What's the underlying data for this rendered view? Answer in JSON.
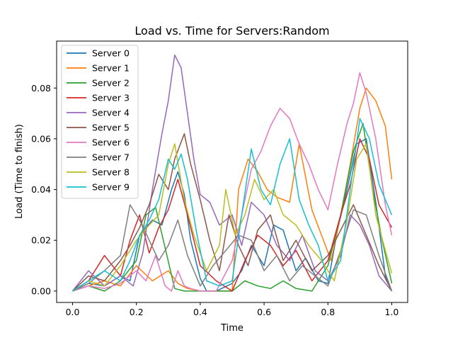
{
  "chart_data": {
    "type": "line",
    "title": "Load vs. Time for Servers:Random",
    "xlabel": "Time",
    "ylabel": "Load (Time to finish)",
    "xlim": [
      -0.05,
      1.05
    ],
    "ylim": [
      -0.0045,
      0.0985
    ],
    "x_ticks": [
      0.0,
      0.2,
      0.4,
      0.6,
      0.8,
      1.0
    ],
    "x_tick_labels": [
      "0.0",
      "0.2",
      "0.4",
      "0.6",
      "0.8",
      "1.0"
    ],
    "y_ticks": [
      0.0,
      0.02,
      0.04,
      0.06,
      0.08
    ],
    "y_tick_labels": [
      "0.00",
      "0.02",
      "0.04",
      "0.06",
      "0.08"
    ],
    "grid": false,
    "legend_position": "upper-left",
    "series": [
      {
        "name": "Server 0",
        "color": "#1f77b4",
        "x": [
          0.0,
          0.05,
          0.1,
          0.15,
          0.18,
          0.21,
          0.25,
          0.28,
          0.31,
          0.33,
          0.35,
          0.37,
          0.4,
          0.42,
          0.45,
          0.5,
          0.53,
          0.56,
          0.6,
          0.63,
          0.66,
          0.7,
          0.73,
          0.77,
          0.8,
          0.83,
          0.86,
          0.89,
          0.92,
          0.95,
          0.98,
          1.0
        ],
        "y": [
          0.0,
          0.003,
          0.002,
          0.006,
          0.004,
          0.022,
          0.028,
          0.026,
          0.04,
          0.047,
          0.038,
          0.02,
          0.005,
          0.0,
          0.0,
          0.003,
          0.008,
          0.018,
          0.01,
          0.026,
          0.024,
          0.008,
          0.013,
          0.004,
          0.003,
          0.024,
          0.04,
          0.058,
          0.06,
          0.035,
          0.006,
          0.0
        ]
      },
      {
        "name": "Server 1",
        "color": "#ff7f0e",
        "x": [
          0.0,
          0.05,
          0.1,
          0.15,
          0.2,
          0.25,
          0.3,
          0.33,
          0.36,
          0.4,
          0.45,
          0.5,
          0.52,
          0.55,
          0.58,
          0.61,
          0.64,
          0.68,
          0.71,
          0.75,
          0.78,
          0.81,
          0.84,
          0.87,
          0.9,
          0.92,
          0.95,
          0.98,
          1.0
        ],
        "y": [
          0.0,
          0.002,
          0.004,
          0.002,
          0.01,
          0.004,
          0.008,
          0.003,
          0.001,
          0.0,
          0.0,
          0.0,
          0.04,
          0.052,
          0.047,
          0.04,
          0.037,
          0.035,
          0.058,
          0.032,
          0.022,
          0.012,
          0.03,
          0.05,
          0.072,
          0.08,
          0.075,
          0.065,
          0.044
        ]
      },
      {
        "name": "Server 2",
        "color": "#2ca02c",
        "x": [
          0.0,
          0.05,
          0.1,
          0.15,
          0.2,
          0.23,
          0.26,
          0.29,
          0.32,
          0.35,
          0.38,
          0.42,
          0.46,
          0.5,
          0.54,
          0.58,
          0.62,
          0.66,
          0.7,
          0.75,
          0.8,
          0.84,
          0.88,
          0.91,
          0.94,
          0.97,
          1.0
        ],
        "y": [
          0.0,
          0.002,
          0.0,
          0.004,
          0.012,
          0.03,
          0.033,
          0.017,
          0.001,
          0.0,
          0.0,
          0.0,
          0.0,
          0.0,
          0.004,
          0.002,
          0.001,
          0.004,
          0.001,
          0.0,
          0.01,
          0.03,
          0.055,
          0.066,
          0.04,
          0.02,
          0.003
        ]
      },
      {
        "name": "Server 3",
        "color": "#d62728",
        "x": [
          0.0,
          0.05,
          0.1,
          0.15,
          0.18,
          0.21,
          0.24,
          0.27,
          0.3,
          0.33,
          0.36,
          0.4,
          0.45,
          0.5,
          0.54,
          0.58,
          0.62,
          0.66,
          0.7,
          0.75,
          0.8,
          0.84,
          0.87,
          0.9,
          0.93,
          0.96,
          1.0
        ],
        "y": [
          0.0,
          0.004,
          0.014,
          0.006,
          0.02,
          0.03,
          0.015,
          0.025,
          0.032,
          0.044,
          0.03,
          0.01,
          0.004,
          0.0,
          0.012,
          0.022,
          0.018,
          0.01,
          0.016,
          0.004,
          0.012,
          0.03,
          0.042,
          0.06,
          0.052,
          0.034,
          0.025
        ]
      },
      {
        "name": "Server 4",
        "color": "#9467bd",
        "x": [
          0.0,
          0.05,
          0.1,
          0.15,
          0.19,
          0.22,
          0.25,
          0.28,
          0.3,
          0.32,
          0.34,
          0.36,
          0.38,
          0.4,
          0.43,
          0.46,
          0.5,
          0.53,
          0.56,
          0.6,
          0.64,
          0.68,
          0.72,
          0.76,
          0.8,
          0.84,
          0.87,
          0.9,
          0.93,
          0.96,
          1.0
        ],
        "y": [
          0.0,
          0.008,
          0.002,
          0.006,
          0.002,
          0.015,
          0.04,
          0.062,
          0.075,
          0.093,
          0.088,
          0.07,
          0.052,
          0.038,
          0.035,
          0.026,
          0.03,
          0.018,
          0.035,
          0.03,
          0.018,
          0.012,
          0.022,
          0.008,
          0.004,
          0.014,
          0.03,
          0.026,
          0.018,
          0.006,
          0.0
        ]
      },
      {
        "name": "Server 5",
        "color": "#8c564b",
        "x": [
          0.0,
          0.05,
          0.1,
          0.15,
          0.18,
          0.21,
          0.24,
          0.27,
          0.3,
          0.32,
          0.35,
          0.37,
          0.4,
          0.43,
          0.46,
          0.49,
          0.52,
          0.55,
          0.58,
          0.62,
          0.66,
          0.7,
          0.75,
          0.8,
          0.84,
          0.88,
          0.92,
          0.96,
          1.0
        ],
        "y": [
          0.0,
          0.006,
          0.004,
          0.012,
          0.018,
          0.025,
          0.034,
          0.046,
          0.04,
          0.052,
          0.062,
          0.05,
          0.036,
          0.02,
          0.008,
          0.03,
          0.018,
          0.01,
          0.024,
          0.03,
          0.012,
          0.02,
          0.008,
          0.014,
          0.024,
          0.034,
          0.022,
          0.01,
          0.0
        ]
      },
      {
        "name": "Server 6",
        "color": "#e377c2",
        "x": [
          0.0,
          0.05,
          0.1,
          0.15,
          0.2,
          0.23,
          0.26,
          0.29,
          0.31,
          0.33,
          0.35,
          0.37,
          0.4,
          0.45,
          0.5,
          0.53,
          0.56,
          0.59,
          0.62,
          0.65,
          0.68,
          0.71,
          0.74,
          0.77,
          0.8,
          0.83,
          0.86,
          0.88,
          0.9,
          0.92,
          0.95,
          0.98,
          1.0
        ],
        "y": [
          0.0,
          0.002,
          0.001,
          0.003,
          0.008,
          0.004,
          0.014,
          0.002,
          0.0,
          0.008,
          0.002,
          0.001,
          0.0,
          0.0,
          0.012,
          0.03,
          0.048,
          0.055,
          0.065,
          0.072,
          0.068,
          0.058,
          0.05,
          0.04,
          0.032,
          0.05,
          0.066,
          0.074,
          0.086,
          0.078,
          0.06,
          0.034,
          0.022
        ]
      },
      {
        "name": "Server 7",
        "color": "#7f7f7f",
        "x": [
          0.0,
          0.05,
          0.1,
          0.15,
          0.18,
          0.21,
          0.24,
          0.27,
          0.3,
          0.33,
          0.36,
          0.4,
          0.44,
          0.48,
          0.52,
          0.56,
          0.6,
          0.64,
          0.68,
          0.72,
          0.76,
          0.8,
          0.84,
          0.88,
          0.92,
          0.96,
          1.0
        ],
        "y": [
          0.0,
          0.003,
          0.008,
          0.014,
          0.034,
          0.028,
          0.02,
          0.012,
          0.018,
          0.028,
          0.014,
          0.002,
          0.01,
          0.016,
          0.022,
          0.02,
          0.008,
          0.014,
          0.004,
          0.01,
          0.006,
          0.002,
          0.016,
          0.032,
          0.03,
          0.014,
          0.0
        ]
      },
      {
        "name": "Server 8",
        "color": "#bcbd22",
        "x": [
          0.0,
          0.05,
          0.1,
          0.15,
          0.2,
          0.24,
          0.27,
          0.3,
          0.32,
          0.35,
          0.38,
          0.42,
          0.46,
          0.48,
          0.51,
          0.54,
          0.57,
          0.6,
          0.63,
          0.66,
          0.7,
          0.74,
          0.78,
          0.82,
          0.86,
          0.89,
          0.92,
          0.95,
          0.98,
          1.0
        ],
        "y": [
          0.0,
          0.004,
          0.002,
          0.01,
          0.02,
          0.026,
          0.03,
          0.05,
          0.058,
          0.036,
          0.022,
          0.008,
          0.018,
          0.04,
          0.022,
          0.03,
          0.044,
          0.036,
          0.04,
          0.03,
          0.026,
          0.018,
          0.012,
          0.004,
          0.028,
          0.052,
          0.058,
          0.03,
          0.016,
          0.007
        ]
      },
      {
        "name": "Server 9",
        "color": "#17becf",
        "x": [
          0.0,
          0.05,
          0.1,
          0.15,
          0.18,
          0.21,
          0.24,
          0.27,
          0.3,
          0.32,
          0.34,
          0.36,
          0.39,
          0.42,
          0.46,
          0.5,
          0.53,
          0.56,
          0.59,
          0.62,
          0.65,
          0.68,
          0.71,
          0.74,
          0.77,
          0.8,
          0.84,
          0.87,
          0.9,
          0.93,
          0.96,
          1.0
        ],
        "y": [
          0.0,
          0.004,
          0.008,
          0.004,
          0.012,
          0.022,
          0.028,
          0.036,
          0.052,
          0.048,
          0.054,
          0.044,
          0.022,
          0.004,
          0.002,
          0.004,
          0.03,
          0.056,
          0.04,
          0.034,
          0.05,
          0.06,
          0.036,
          0.026,
          0.018,
          0.004,
          0.012,
          0.04,
          0.068,
          0.06,
          0.042,
          0.03
        ]
      }
    ]
  }
}
